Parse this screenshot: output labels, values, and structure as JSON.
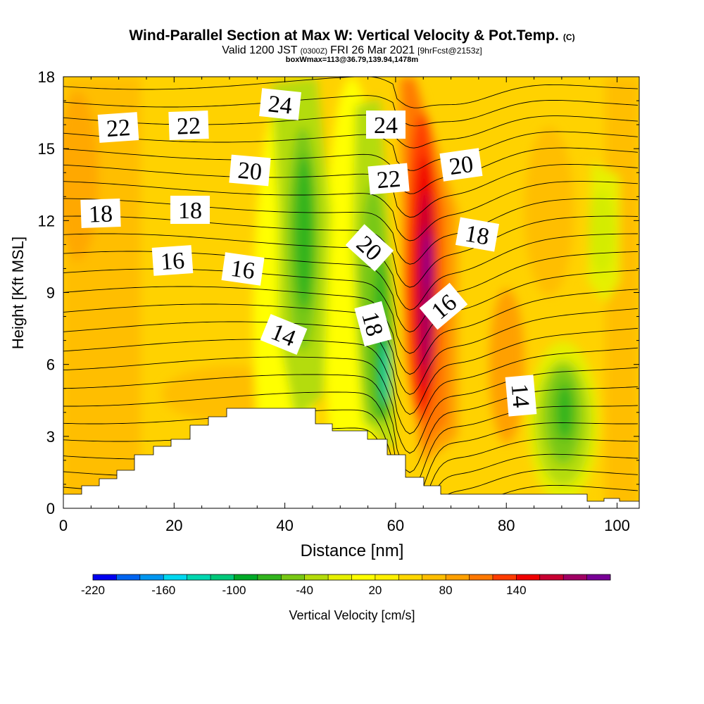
{
  "chart_data": {
    "type": "heatmap",
    "title": "Wind-Parallel Section at Max W: Vertical Velocity & Pot.Temp.",
    "title_mark": "(C)",
    "subtitle": {
      "a": "Valid 1200 JST",
      "b": "(0300Z)",
      "c": "FRI 26 Mar 2021",
      "d": "[9hrFcst@2153z]"
    },
    "box_info": "boxWmax=113@36.79,139.94,1478m",
    "xlabel": "Distance [nm]",
    "ylabel": "Height [Kft MSL]",
    "xlim": [
      0,
      104
    ],
    "ylim": [
      0,
      18
    ],
    "x_ticks": [
      0,
      20,
      40,
      60,
      80,
      100
    ],
    "y_ticks": [
      0,
      3,
      6,
      9,
      12,
      15,
      18
    ],
    "colorbar": {
      "label": "Vertical Velocity [cm/s]",
      "tick_labels": [
        "-220",
        "-160",
        "-100",
        "-40",
        "20",
        "80",
        "140"
      ],
      "colors": [
        "#0000f0",
        "#0064f0",
        "#0096f0",
        "#00d8f0",
        "#00d7b0",
        "#00c87a",
        "#00aa28",
        "#32b41e",
        "#78c814",
        "#b4dc0a",
        "#e6f000",
        "#ffff00",
        "#fff000",
        "#ffd700",
        "#ffbe00",
        "#ffa000",
        "#ff7800",
        "#ff3c00",
        "#f00000",
        "#c80032",
        "#a00064",
        "#780096"
      ]
    },
    "background_value_color": "#ffd700",
    "contour_labels": [
      "22",
      "22",
      "24",
      "24",
      "20",
      "22",
      "20",
      "18",
      "18",
      "20",
      "18",
      "16",
      "16",
      "16",
      "14",
      "18",
      "14"
    ]
  }
}
